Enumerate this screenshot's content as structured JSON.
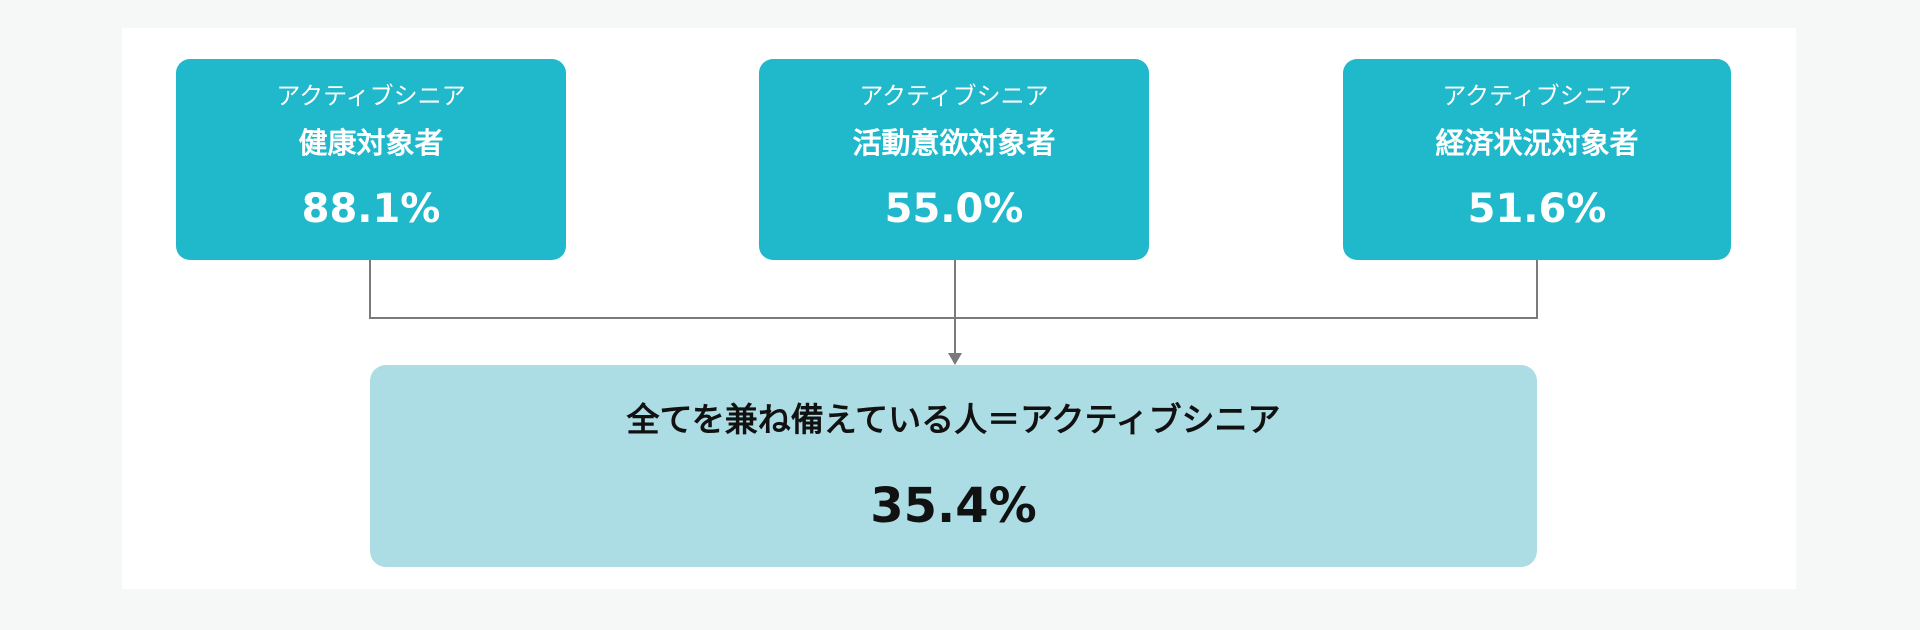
{
  "boxes": [
    {
      "subtitle": "アクティブシニア",
      "title": "健康対象者",
      "percent": "88.1%"
    },
    {
      "subtitle": "アクティブシニア",
      "title": "活動意欲対象者",
      "percent": "55.0%"
    },
    {
      "subtitle": "アクティブシニア",
      "title": "経済状況対象者",
      "percent": "51.6%"
    }
  ],
  "result": {
    "title": "全てを兼ね備えている人＝アクティブシニア",
    "percent": "35.4%"
  },
  "colors": {
    "box": "#20b8cb",
    "result": "#addde4",
    "connector": "#7a7a7a"
  }
}
